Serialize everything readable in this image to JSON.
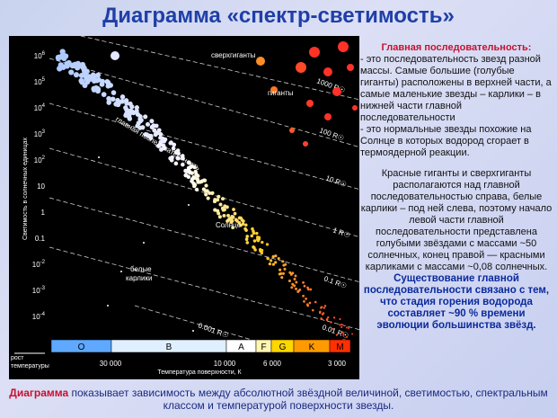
{
  "header": {
    "title": "Диаграмма «спектр-светимость»"
  },
  "diagram": {
    "y_axis_label": "Светимость в солнечных единицах",
    "y_ticks": [
      {
        "base": "10",
        "exp": "6"
      },
      {
        "base": "10",
        "exp": "5"
      },
      {
        "base": "10",
        "exp": "4"
      },
      {
        "base": "10",
        "exp": "3"
      },
      {
        "base": "10",
        "exp": "2"
      },
      {
        "base": "10",
        "exp": ""
      },
      {
        "base": "1",
        "exp": ""
      },
      {
        "base": "0.1",
        "exp": ""
      },
      {
        "base": "10",
        "exp": "-2"
      },
      {
        "base": "10",
        "exp": "-3"
      },
      {
        "base": "10",
        "exp": "-4"
      }
    ],
    "spectral_classes": [
      "O",
      "B",
      "A",
      "F",
      "G",
      "K",
      "M"
    ],
    "x_ticks": [
      "30 000",
      "10 000",
      "6 000",
      "3 000"
    ],
    "x_axis_label": "Температура поверхности, К",
    "temperature_note": [
      "рост",
      "температуры"
    ],
    "regions": {
      "supergiants": "сверхгиганты",
      "giants": "гиганты",
      "main_sequence": "главная последовательность",
      "sun": "Солнце",
      "white_dwarfs": [
        "белые",
        "карлики"
      ]
    },
    "radius_lines": [
      "1000 R☉",
      "100 R☉",
      "10 R☉",
      "1 R☉",
      "0.1 R☉",
      "0.01 R☉",
      "0.001 R☉"
    ]
  },
  "text": {
    "heading": "Главная последовательность:",
    "point1": "- это последовательность звезд разной массы. Самые большие (голубые гиганты) расположены в верхней части, а  самые маленькие звезды – карлики – в нижней части главной последовательности",
    "point2": "- это нормальные звезды похожие на Солнце в которых водород сгорает в термоядерной реакции.",
    "paragraph": "Красные гиганты и сверхгиганты располагаются над главной последовательностью справа, белые карлики – под ней слева, поэтому начало левой части главной последовательности представлена голубыми звёздами с массами ~50 солнечных, конец правой — красными карликами с массами ~0,08 солнечных.",
    "conclusion": "Существование главной последовательности связано с тем, что стадия горения водорода составляет ~90 % времени эволюции большинства звёзд."
  },
  "footer": {
    "lead": "Диаграмма",
    "rest": " показывает зависимость между абсолютной звёздной величиной, светимостью, спектральным классом и температурой поверхности звезды."
  }
}
